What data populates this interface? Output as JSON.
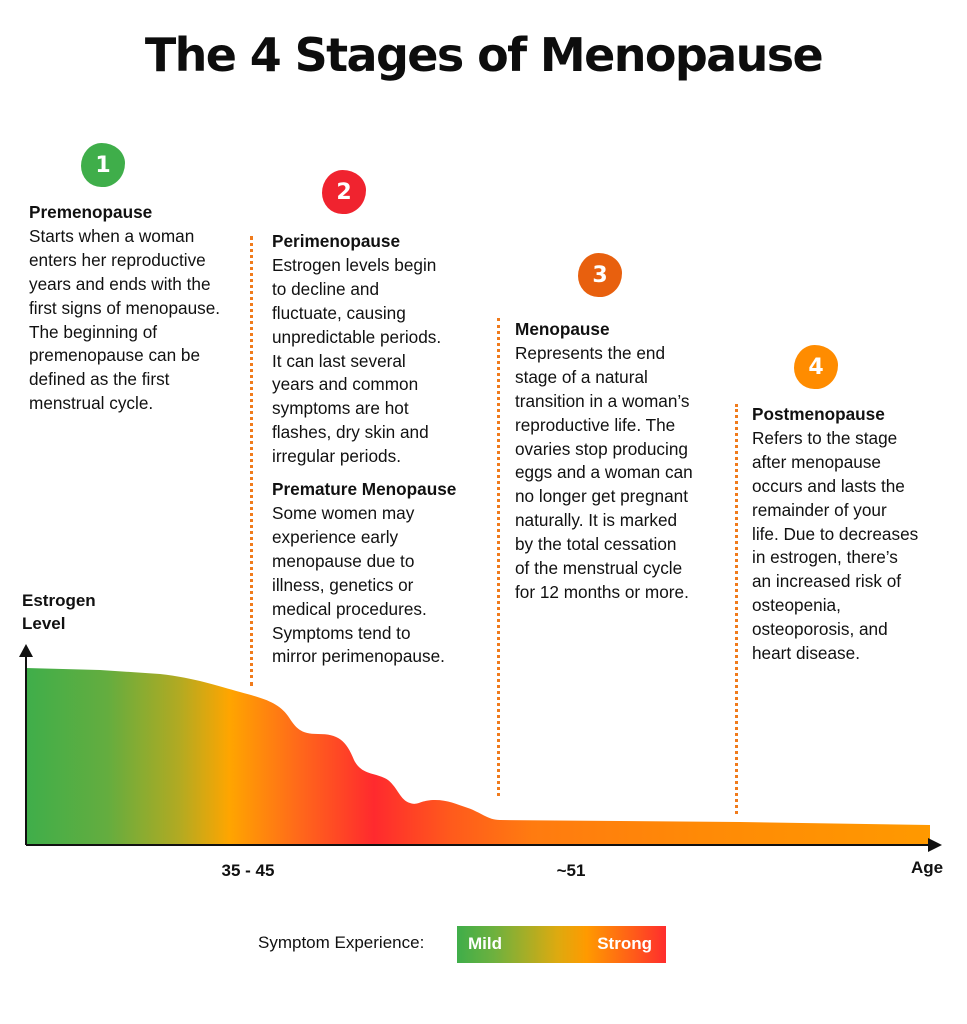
{
  "title": "The 4 Stages of Menopause",
  "colors": {
    "green": "#3fae4a",
    "red": "#f0232f",
    "orange_dark": "#e8600e",
    "orange": "#ff8c00"
  },
  "stages": [
    {
      "number": "1",
      "heading": "Premenopause",
      "lines": [
        "Starts when a woman",
        "enters her reproductive",
        "years and ends with the",
        "first signs of menopause.",
        "The beginning of",
        "premenopause can be",
        "defined as the first",
        "menstrual cycle."
      ]
    },
    {
      "number": "2",
      "heading": "Perimenopause",
      "lines": [
        "Estrogen levels begin",
        "to decline and",
        "fluctuate, causing",
        "unpredictable periods.",
        "It can last several",
        "years and common",
        "symptoms are hot",
        "flashes, dry skin and",
        "irregular periods."
      ],
      "sub_heading": "Premature Menopause",
      "sub_lines": [
        "Some women may",
        "experience early",
        "menopause due to",
        "illness, genetics or",
        "medical procedures.",
        "Symptoms tend to",
        "mirror perimenopause."
      ]
    },
    {
      "number": "3",
      "heading": "Menopause",
      "lines": [
        "Represents the end",
        "stage of a natural",
        "transition in a woman’s",
        "reproductive life. The",
        "ovaries stop producing",
        "eggs and a woman can",
        "no longer get pregnant",
        "naturally. It is marked",
        "by the total cessation",
        "of the menstrual cycle",
        "for 12 months or more."
      ]
    },
    {
      "number": "4",
      "heading": "Postmenopause",
      "lines": [
        "Refers to the stage",
        "after menopause",
        "occurs and lasts the",
        "remainder of your",
        "life. Due to decreases",
        "in estrogen, there’s",
        "an increased risk of",
        "osteopenia,",
        "osteoporosis, and",
        "heart disease."
      ]
    }
  ],
  "chart": {
    "y_label_line1": "Estrogen",
    "y_label_line2": "Level",
    "x_label": "Age",
    "ticks": [
      "35 - 45",
      "~51"
    ]
  },
  "legend": {
    "label": "Symptom Experience:",
    "mild": "Mild",
    "strong": "Strong"
  }
}
